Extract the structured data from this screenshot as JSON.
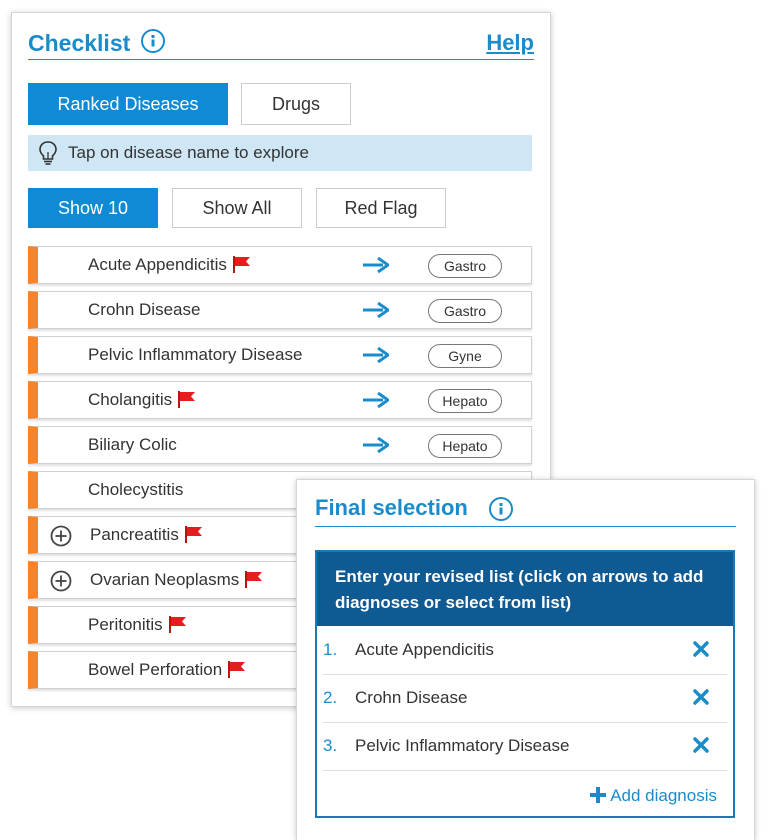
{
  "checklist": {
    "title": "Checklist",
    "help_label": "Help",
    "tabs": [
      {
        "label": "Ranked Diseases",
        "active": true
      },
      {
        "label": "Drugs",
        "active": false
      }
    ],
    "tip": "Tap on disease name to explore",
    "filters": [
      {
        "label": "Show 10",
        "active": true
      },
      {
        "label": "Show All",
        "active": false
      },
      {
        "label": "Red Flag",
        "active": false
      }
    ],
    "diseases": [
      {
        "name": "Acute Appendicitis",
        "red_flag": true,
        "expandable": false,
        "specialty": "Gastro"
      },
      {
        "name": "Crohn Disease",
        "red_flag": false,
        "expandable": false,
        "specialty": "Gastro"
      },
      {
        "name": "Pelvic Inflammatory Disease",
        "red_flag": false,
        "expandable": false,
        "specialty": "Gyne"
      },
      {
        "name": "Cholangitis",
        "red_flag": true,
        "expandable": false,
        "specialty": "Hepato"
      },
      {
        "name": "Biliary Colic",
        "red_flag": false,
        "expandable": false,
        "specialty": "Hepato"
      },
      {
        "name": "Cholecystitis",
        "red_flag": false,
        "expandable": false,
        "specialty": ""
      },
      {
        "name": "Pancreatitis",
        "red_flag": true,
        "expandable": true,
        "specialty": ""
      },
      {
        "name": "Ovarian Neoplasms",
        "red_flag": true,
        "expandable": true,
        "specialty": ""
      },
      {
        "name": "Peritonitis",
        "red_flag": true,
        "expandable": false,
        "specialty": ""
      },
      {
        "name": "Bowel Perforation",
        "red_flag": true,
        "expandable": false,
        "specialty": ""
      }
    ]
  },
  "final_selection": {
    "title": "Final selection",
    "instructions": "Enter your revised list (click on arrows to add diagnoses or select from list)",
    "items": [
      {
        "number": "1.",
        "label": "Acute Appendicitis"
      },
      {
        "number": "2.",
        "label": "Crohn Disease"
      },
      {
        "number": "3.",
        "label": "Pelvic Inflammatory Disease"
      }
    ],
    "add_label": "Add diagnosis"
  },
  "colors": {
    "accent": "#1a8ccb",
    "active_button": "#0e8bd4",
    "row_marker": "#f7842b",
    "flag": "#e41e1e",
    "header_dark": "#0f5a92",
    "tip_bg": "#cfe6f4"
  },
  "icons": {
    "info": "info-circle-icon",
    "tip": "lightbulb-icon",
    "flag": "red-flag-icon",
    "arrow": "arrow-right-icon",
    "expand": "plus-circle-icon",
    "remove": "close-x-icon",
    "add": "plus-icon"
  }
}
